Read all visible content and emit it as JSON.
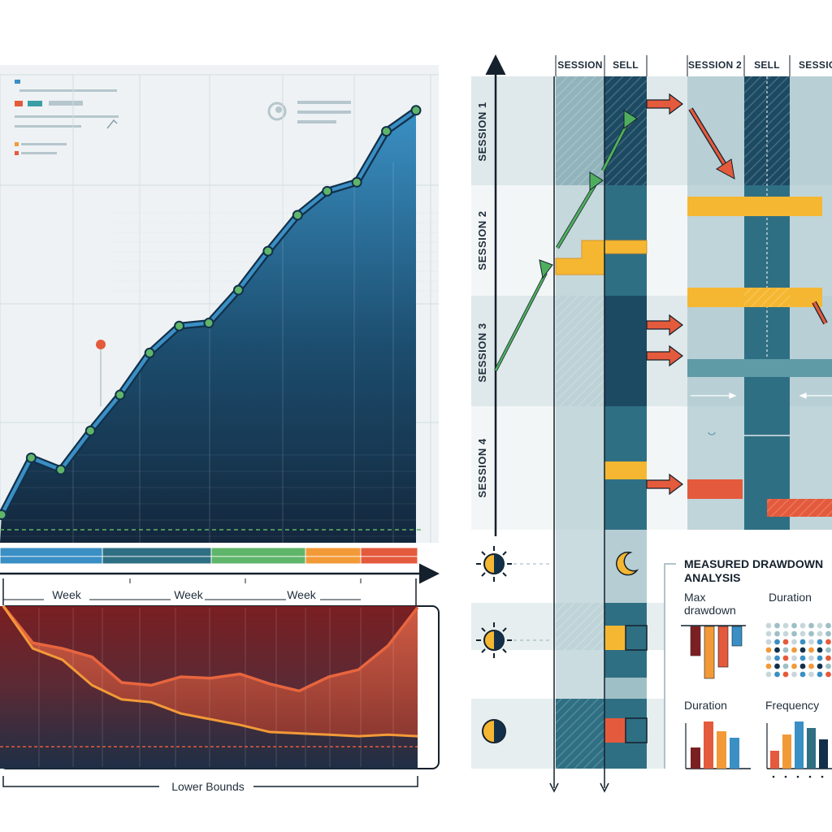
{
  "colors": {
    "navy": "#12304a",
    "blue": "#3a8fc4",
    "teal": "#2f6f83",
    "green": "#5fb56a",
    "orange": "#f29a38",
    "red": "#e45a3c",
    "yellow": "#f5b731",
    "pale": "#cfe0e4"
  },
  "icons": [
    "sun-icon",
    "moon-icon",
    "half-moon-icon",
    "magnifier-icon",
    "arrow-icon"
  ],
  "chart_data": [
    {
      "type": "area",
      "x": [
        1,
        2,
        3,
        4,
        5,
        6,
        7,
        8,
        9,
        10,
        11,
        12,
        13,
        14,
        15
      ],
      "values": [
        8,
        27,
        23,
        36,
        48,
        62,
        71,
        72,
        83,
        96,
        108,
        116,
        119,
        136,
        143
      ],
      "ylim": [
        0,
        150
      ],
      "band_colors": [
        "#3a8fc4",
        "#2f6f83",
        "#5fb56a",
        "#f29a38",
        "#e45a3c"
      ],
      "tick_labels": [
        "Week",
        "Week",
        "Week"
      ],
      "grid": true
    },
    {
      "type": "area",
      "series": [
        {
          "values": [
            100,
            74,
            70,
            64,
            46,
            44,
            50,
            49,
            52,
            45,
            40,
            50,
            55,
            72,
            99
          ]
        },
        {
          "values": [
            100,
            70,
            62,
            44,
            34,
            32,
            24,
            20,
            16,
            11,
            10,
            9,
            8,
            9,
            8
          ]
        }
      ],
      "ylim": [
        0,
        100
      ],
      "bound_label": "Lower Bounds",
      "grid": true
    },
    {
      "type": "table",
      "column_headers": [
        "SESSION",
        "SELL",
        "SESSION 2",
        "SELL",
        "SESSION"
      ],
      "row_labels": [
        "SESSION 1",
        "SESSION 2",
        "SESSION 3",
        "SESSION 4"
      ]
    },
    {
      "type": "bar",
      "title": "MEASURED DRAWDOWN\nANALYSIS",
      "panels": [
        {
          "label": "Max\ndrawdown",
          "type": "bar",
          "values": [
            -45,
            -80,
            -62,
            -30
          ]
        },
        {
          "label": "Duration",
          "type": "scatter"
        },
        {
          "label": "Duration",
          "type": "bar",
          "values": [
            30,
            62,
            45,
            42
          ]
        },
        {
          "label": "Frequency",
          "type": "bar",
          "values": [
            25,
            32,
            68,
            55,
            40
          ]
        }
      ]
    }
  ],
  "legend_header": {
    "swatches": [
      "#e45a3c",
      "#3a8fc4"
    ]
  }
}
